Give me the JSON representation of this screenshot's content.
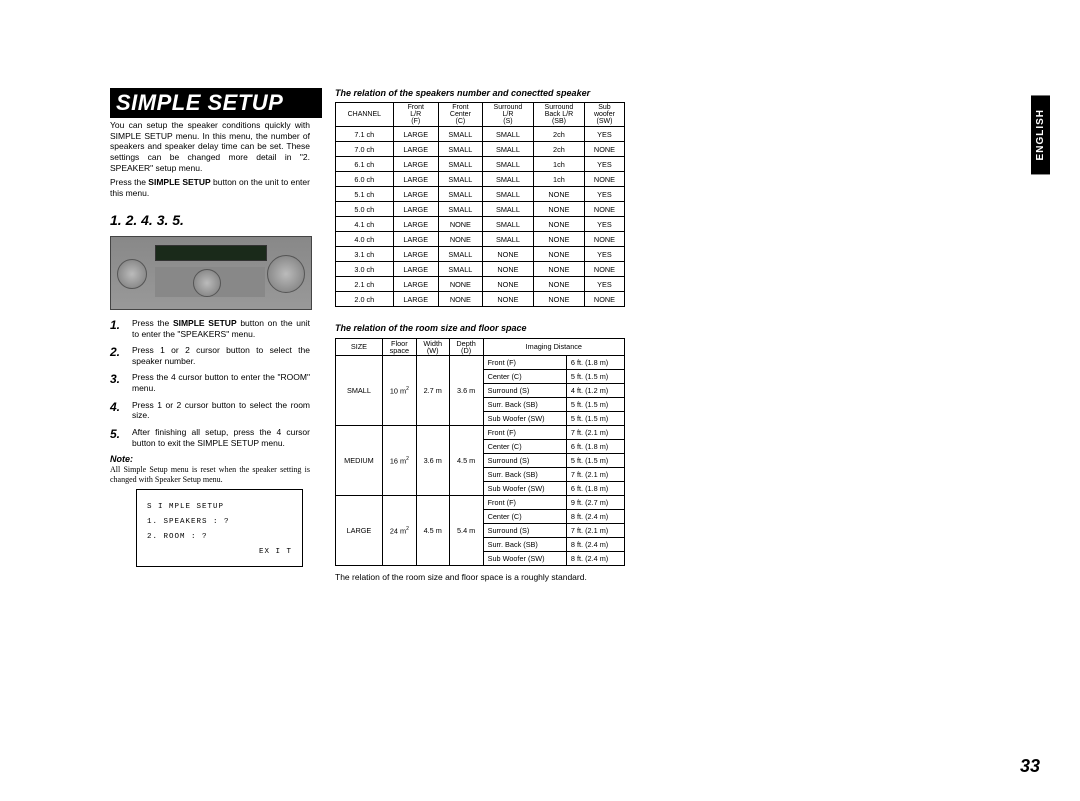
{
  "english_tab": "ENGLISH",
  "page_number": "33",
  "title": "SIMPLE SETUP",
  "intro": "You can setup the speaker conditions quickly with SIMPLE SETUP menu. In this menu, the number of speakers and speaker delay time can be set. These settings can be changed more detail in \"2. SPEAKER\" setup menu.",
  "intro2_pre": "Press the ",
  "intro2_bold": "SIMPLE SETUP",
  "intro2_post": " button on the unit to enter this menu.",
  "numbers_line": "1.   2. 4.   3. 5.",
  "steps": [
    {
      "n": "1.",
      "pre": "Press the ",
      "b": "SIMPLE SETUP",
      "post": " button on the unit to enter the \"SPEAKERS\" menu."
    },
    {
      "n": "2.",
      "pre": "",
      "b": "",
      "post": "Press 1 or 2 cursor button to select the speaker number."
    },
    {
      "n": "3.",
      "pre": "",
      "b": "",
      "post": "Press the 4 cursor button to enter the \"ROOM\" menu."
    },
    {
      "n": "4.",
      "pre": "",
      "b": "",
      "post": "Press 1 or 2 cursor button to select the room size."
    },
    {
      "n": "5.",
      "pre": "",
      "b": "",
      "post": "After finishing all setup, press the 4 cursor button to exit the SIMPLE SETUP menu."
    }
  ],
  "note_label": "Note:",
  "note_text": "All Simple Setup menu is reset when the speaker setting is changed with Speaker Setup menu.",
  "menu": {
    "title": "S I MPLE  SETUP",
    "line1": "1. SPEAKERS  :  ?",
    "line2": "2. ROOM          :  ?",
    "exit": "EX I T"
  },
  "table1": {
    "caption": "The relation of the speakers number and conectted speaker",
    "headers": [
      "CHANNEL",
      "Front L/R (F)",
      "Front Center (C)",
      "Surround L/R (S)",
      "Surround Back L/R (SB)",
      "Sub woofer (SW)"
    ],
    "rows": [
      [
        "7.1 ch",
        "LARGE",
        "SMALL",
        "SMALL",
        "2ch",
        "YES"
      ],
      [
        "7.0 ch",
        "LARGE",
        "SMALL",
        "SMALL",
        "2ch",
        "NONE"
      ],
      [
        "6.1 ch",
        "LARGE",
        "SMALL",
        "SMALL",
        "1ch",
        "YES"
      ],
      [
        "6.0 ch",
        "LARGE",
        "SMALL",
        "SMALL",
        "1ch",
        "NONE"
      ],
      [
        "5.1 ch",
        "LARGE",
        "SMALL",
        "SMALL",
        "NONE",
        "YES"
      ],
      [
        "5.0 ch",
        "LARGE",
        "SMALL",
        "SMALL",
        "NONE",
        "NONE"
      ],
      [
        "4.1 ch",
        "LARGE",
        "NONE",
        "SMALL",
        "NONE",
        "YES"
      ],
      [
        "4.0 ch",
        "LARGE",
        "NONE",
        "SMALL",
        "NONE",
        "NONE"
      ],
      [
        "3.1 ch",
        "LARGE",
        "SMALL",
        "NONE",
        "NONE",
        "YES"
      ],
      [
        "3.0 ch",
        "LARGE",
        "SMALL",
        "NONE",
        "NONE",
        "NONE"
      ],
      [
        "2.1 ch",
        "LARGE",
        "NONE",
        "NONE",
        "NONE",
        "YES"
      ],
      [
        "2.0 ch",
        "LARGE",
        "NONE",
        "NONE",
        "NONE",
        "NONE"
      ]
    ]
  },
  "table2": {
    "caption": "The relation of the room size and floor space",
    "headers": [
      "SIZE",
      "Floor space",
      "Width (W)",
      "Depth (D)",
      "Imaging Distance"
    ],
    "groups": [
      {
        "size": "SMALL",
        "floor": "10 m²",
        "w": "2.7 m",
        "d": "3.6 m",
        "rows": [
          [
            "Front (F)",
            "6 ft. (1.8 m)"
          ],
          [
            "Center (C)",
            "5 ft. (1.5 m)"
          ],
          [
            "Surround (S)",
            "4 ft. (1.2 m)"
          ],
          [
            "Surr. Back (SB)",
            "5 ft. (1.5 m)"
          ],
          [
            "Sub Woofer (SW)",
            "5 ft. (1.5 m)"
          ]
        ]
      },
      {
        "size": "MEDIUM",
        "floor": "16 m²",
        "w": "3.6 m",
        "d": "4.5 m",
        "rows": [
          [
            "Front (F)",
            "7 ft. (2.1 m)"
          ],
          [
            "Center (C)",
            "6 ft. (1.8 m)"
          ],
          [
            "Surround (S)",
            "5 ft. (1.5 m)"
          ],
          [
            "Surr. Back (SB)",
            "7 ft. (2.1 m)"
          ],
          [
            "Sub Woofer (SW)",
            "6 ft. (1.8 m)"
          ]
        ]
      },
      {
        "size": "LARGE",
        "floor": "24 m²",
        "w": "4.5 m",
        "d": "5.4 m",
        "rows": [
          [
            "Front (F)",
            "9 ft. (2.7 m)"
          ],
          [
            "Center (C)",
            "8 ft. (2.4 m)"
          ],
          [
            "Surround (S)",
            "7 ft. (2.1 m)"
          ],
          [
            "Surr. Back (SB)",
            "8 ft. (2.4 m)"
          ],
          [
            "Sub Woofer (SW)",
            "8 ft. (2.4 m)"
          ]
        ]
      }
    ],
    "footnote": "The relation of the room size and floor space is a roughly standard."
  }
}
